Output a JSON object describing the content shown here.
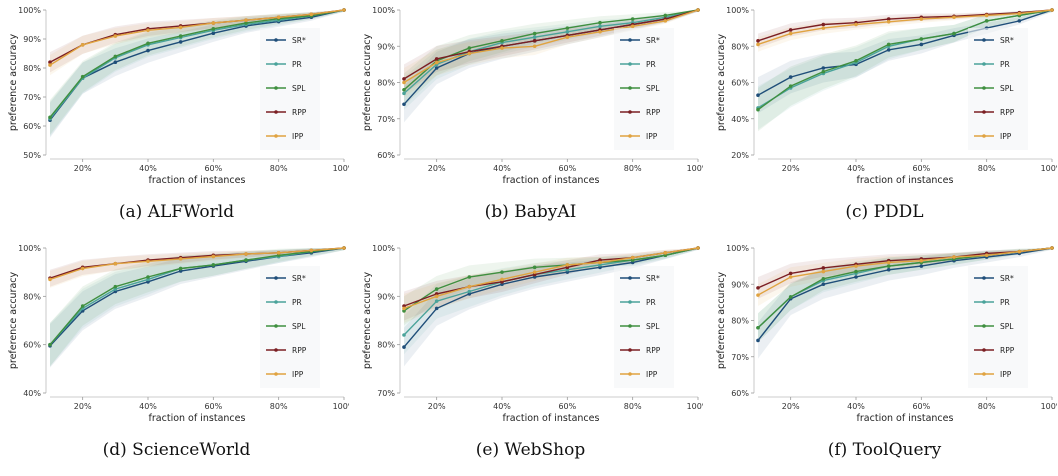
{
  "series_meta": [
    {
      "name": "SR*",
      "color": "#1f4e79"
    },
    {
      "name": "PR",
      "color": "#4aa39a"
    },
    {
      "name": "SPL",
      "color": "#3f8f3f"
    },
    {
      "name": "RPP",
      "color": "#7b1f23"
    },
    {
      "name": "IPP",
      "color": "#e0a340"
    }
  ],
  "chart_data": [
    {
      "type": "line",
      "caption": "(a) ALFWorld",
      "xlabel": "fraction of instances",
      "ylabel": "preference accuracy",
      "x": [
        10,
        20,
        30,
        40,
        50,
        60,
        70,
        80,
        90,
        100
      ],
      "xticks": [
        "20%",
        "40%",
        "60%",
        "80%",
        "100%"
      ],
      "xtick_values": [
        20,
        40,
        60,
        80,
        100
      ],
      "ylim": [
        50,
        100
      ],
      "yticks": [
        "50%",
        "60%",
        "70%",
        "80%",
        "90%",
        "100%"
      ],
      "ytick_values": [
        50,
        60,
        70,
        80,
        90,
        100
      ],
      "legend": "right",
      "series": [
        {
          "name": "SR*",
          "values": [
            62,
            76.5,
            82,
            86,
            89,
            92,
            94.5,
            96,
            97.5,
            100
          ],
          "band": 6
        },
        {
          "name": "PR",
          "values": [
            62.5,
            76.5,
            83.5,
            88,
            90.5,
            93,
            95,
            96.5,
            98,
            100
          ],
          "band": 6
        },
        {
          "name": "SPL",
          "values": [
            63,
            77,
            84,
            88.5,
            91,
            93.5,
            95.5,
            97,
            98,
            100
          ],
          "band": 6
        },
        {
          "name": "RPP",
          "values": [
            82,
            88,
            91.5,
            93.5,
            94.5,
            95.5,
            96.5,
            97.5,
            98.5,
            100
          ],
          "band": 3.5
        },
        {
          "name": "IPP",
          "values": [
            81,
            88,
            91,
            93,
            94,
            95.5,
            96.5,
            97.5,
            98.5,
            100
          ],
          "band": 3.5
        }
      ]
    },
    {
      "type": "line",
      "caption": "(b) BabyAI",
      "xlabel": "fraction of instances",
      "ylabel": "preference accuracy",
      "x": [
        10,
        20,
        30,
        40,
        50,
        60,
        70,
        80,
        90,
        100
      ],
      "xticks": [
        "20%",
        "40%",
        "60%",
        "80%",
        "100%"
      ],
      "xtick_values": [
        20,
        40,
        60,
        80,
        100
      ],
      "ylim": [
        60,
        100
      ],
      "yticks": [
        "60%",
        "70%",
        "80%",
        "90%",
        "100%"
      ],
      "ytick_values": [
        60,
        70,
        80,
        90,
        100
      ],
      "legend": "right",
      "series": [
        {
          "name": "SR*",
          "values": [
            74,
            84,
            88,
            90,
            91.5,
            93,
            94.5,
            96,
            97.5,
            100
          ],
          "band": 5
        },
        {
          "name": "PR",
          "values": [
            77,
            85,
            88.5,
            91,
            92.5,
            94,
            95.5,
            96.5,
            98,
            100
          ],
          "band": 4.5
        },
        {
          "name": "SPL",
          "values": [
            78,
            86,
            89.5,
            91.5,
            93.5,
            95,
            96.5,
            97.5,
            98.5,
            100
          ],
          "band": 4.5
        },
        {
          "name": "RPP",
          "values": [
            81,
            86.5,
            88.5,
            90,
            91.5,
            93,
            94.5,
            96,
            97.5,
            100
          ],
          "band": 4
        },
        {
          "name": "IPP",
          "values": [
            80,
            85.5,
            88,
            89.5,
            90,
            92.5,
            94,
            95.5,
            97,
            100
          ],
          "band": 4
        }
      ]
    },
    {
      "type": "line",
      "caption": "(c) PDDL",
      "xlabel": "fraction of instances",
      "ylabel": "preference accuracy",
      "x": [
        10,
        20,
        30,
        40,
        50,
        60,
        70,
        80,
        90,
        100
      ],
      "xticks": [
        "20%",
        "40%",
        "60%",
        "80%",
        "100%"
      ],
      "xtick_values": [
        20,
        40,
        60,
        80,
        100
      ],
      "ylim": [
        20,
        100
      ],
      "yticks": [
        "20%",
        "40%",
        "60%",
        "80%",
        "100%"
      ],
      "ytick_values": [
        20,
        40,
        60,
        80,
        100
      ],
      "legend": "right",
      "series": [
        {
          "name": "SR*",
          "values": [
            53,
            63,
            68,
            70,
            78,
            81,
            86,
            90,
            94,
            100
          ],
          "band": 10
        },
        {
          "name": "PR",
          "values": [
            46,
            57,
            65,
            71,
            80,
            84,
            87,
            94,
            97,
            100
          ],
          "band": 12
        },
        {
          "name": "SPL",
          "values": [
            45,
            58,
            66,
            72,
            81,
            84,
            87,
            94,
            97,
            100
          ],
          "band": 12
        },
        {
          "name": "RPP",
          "values": [
            83,
            89,
            92,
            93,
            95,
            96,
            96.5,
            97.5,
            98.5,
            100
          ],
          "band": 4
        },
        {
          "name": "IPP",
          "values": [
            81,
            87,
            90,
            92,
            93.5,
            95,
            96,
            97,
            98,
            100
          ],
          "band": 4
        }
      ]
    },
    {
      "type": "line",
      "caption": "(d) ScienceWorld",
      "xlabel": "fraction of instances",
      "ylabel": "preference accuracy",
      "x": [
        10,
        20,
        30,
        40,
        50,
        60,
        70,
        80,
        90,
        100
      ],
      "xticks": [
        "20%",
        "40%",
        "60%",
        "80%",
        "100%"
      ],
      "xtick_values": [
        20,
        40,
        60,
        80,
        100
      ],
      "ylim": [
        40,
        100
      ],
      "yticks": [
        "40%",
        "60%",
        "80%",
        "100%"
      ],
      "ytick_values": [
        40,
        60,
        80,
        100
      ],
      "legend": "right",
      "series": [
        {
          "name": "SR*",
          "values": [
            59.5,
            74,
            82,
            86,
            90.5,
            92.5,
            94.5,
            96.5,
            98,
            100
          ],
          "band": 9
        },
        {
          "name": "PR",
          "values": [
            60,
            75,
            83,
            87,
            91.5,
            93,
            95,
            96.5,
            98.5,
            100
          ],
          "band": 9
        },
        {
          "name": "SPL",
          "values": [
            60,
            76,
            84,
            88,
            91.5,
            93,
            95,
            97,
            98.5,
            100
          ],
          "band": 9
        },
        {
          "name": "RPP",
          "values": [
            87.5,
            92,
            93.5,
            95,
            96,
            97,
            97.5,
            98,
            99,
            100
          ],
          "band": 3.5
        },
        {
          "name": "IPP",
          "values": [
            87,
            91.5,
            93.5,
            94.5,
            95.5,
            96.5,
            97.5,
            98,
            99,
            100
          ],
          "band": 3.5
        }
      ]
    },
    {
      "type": "line",
      "caption": "(e) WebShop",
      "xlabel": "fraction of instances",
      "ylabel": "preference accuracy",
      "x": [
        10,
        20,
        30,
        40,
        50,
        60,
        70,
        80,
        90,
        100
      ],
      "xticks": [
        "20%",
        "40%",
        "60%",
        "80%",
        "100%"
      ],
      "xtick_values": [
        20,
        40,
        60,
        80,
        100
      ],
      "ylim": [
        70,
        100
      ],
      "yticks": [
        "70%",
        "80%",
        "90%",
        "100%"
      ],
      "ytick_values": [
        70,
        80,
        90,
        100
      ],
      "legend": "right",
      "series": [
        {
          "name": "SR*",
          "values": [
            79.5,
            87.5,
            90.5,
            92.5,
            94,
            95,
            96,
            97,
            98.5,
            100
          ],
          "band": 4
        },
        {
          "name": "PR",
          "values": [
            82,
            89,
            91,
            93,
            94.5,
            95.5,
            96.5,
            97.5,
            98.5,
            100
          ],
          "band": 4
        },
        {
          "name": "SPL",
          "values": [
            87,
            91.5,
            94,
            95,
            96,
            96.5,
            97,
            97.5,
            98.5,
            100
          ],
          "band": 3
        },
        {
          "name": "RPP",
          "values": [
            88,
            90.5,
            92,
            93,
            94.5,
            96,
            97.5,
            98,
            99,
            100
          ],
          "band": 3
        },
        {
          "name": "IPP",
          "values": [
            87.5,
            90,
            92,
            93.5,
            95,
            96.5,
            97,
            98,
            99,
            100
          ],
          "band": 3
        }
      ]
    },
    {
      "type": "line",
      "caption": "(f) ToolQuery",
      "xlabel": "fraction of instances",
      "ylabel": "preference accuracy",
      "x": [
        10,
        20,
        30,
        40,
        50,
        60,
        70,
        80,
        90,
        100
      ],
      "xticks": [
        "20%",
        "40%",
        "60%",
        "80%",
        "100%"
      ],
      "xtick_values": [
        20,
        40,
        60,
        80,
        100
      ],
      "ylim": [
        60,
        100
      ],
      "yticks": [
        "60%",
        "70%",
        "80%",
        "90%",
        "100%"
      ],
      "ytick_values": [
        60,
        70,
        80,
        90,
        100
      ],
      "legend": "right",
      "series": [
        {
          "name": "SR*",
          "values": [
            74.5,
            86,
            90,
            92,
            94,
            95,
            96.5,
            97.5,
            98.5,
            100
          ],
          "band": 5
        },
        {
          "name": "PR",
          "values": [
            78,
            86.5,
            91,
            93,
            95,
            96,
            97,
            98,
            99,
            100
          ],
          "band": 4
        },
        {
          "name": "SPL",
          "values": [
            78,
            86.5,
            91.5,
            93.5,
            95,
            96,
            97,
            98,
            99,
            100
          ],
          "band": 4
        },
        {
          "name": "RPP",
          "values": [
            89,
            93,
            94.5,
            95.5,
            96.5,
            97,
            97.5,
            98.5,
            99,
            100
          ],
          "band": 3
        },
        {
          "name": "IPP",
          "values": [
            87,
            92,
            93.5,
            95,
            96,
            96.5,
            97.5,
            98,
            99,
            100
          ],
          "band": 3
        }
      ]
    }
  ]
}
